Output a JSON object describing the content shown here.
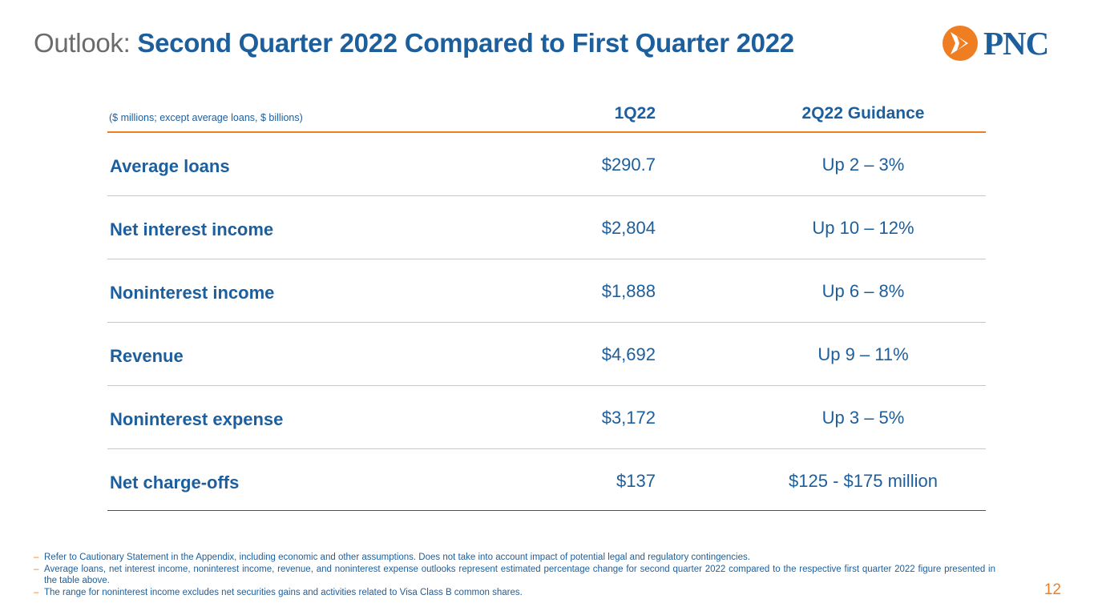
{
  "title": {
    "prefix": "Outlook:",
    "main": "Second Quarter 2022 Compared to First Quarter 2022"
  },
  "logo": {
    "text": "PNC",
    "mark": "®",
    "icon": "pnc-arrow-logo-icon"
  },
  "table": {
    "units_note": "($ millions; except average loans, $ billions)",
    "columns": [
      "1Q22",
      "2Q22 Guidance"
    ],
    "rows": [
      {
        "label": "Average loans",
        "q1": "$290.7",
        "guidance": "Up 2 – 3%"
      },
      {
        "label": "Net interest income",
        "q1": "$2,804",
        "guidance": "Up 10 – 12%"
      },
      {
        "label": "Noninterest income",
        "q1": "$1,888",
        "guidance": "Up 6 – 8%"
      },
      {
        "label": "Revenue",
        "q1": "$4,692",
        "guidance": "Up 9 – 11%"
      },
      {
        "label": "Noninterest expense",
        "q1": "$3,172",
        "guidance": "Up 3 – 5%"
      },
      {
        "label": "Net charge-offs",
        "q1": "$137",
        "guidance": "$125 - $175 million"
      }
    ]
  },
  "footnotes": {
    "bullet": "–",
    "items": [
      "Refer to Cautionary Statement in the Appendix, including economic and other assumptions. Does not take into account impact of potential legal and regulatory contingencies.",
      "Average loans, net interest income, noninterest income, revenue, and noninterest expense outlooks represent estimated percentage change for second quarter 2022 compared to the respective first quarter 2022 figure presented in the table above.",
      "The range for noninterest income excludes net securities gains and activities related to Visa Class B common shares."
    ]
  },
  "page_number": "12",
  "colors": {
    "brand_blue": "#1d5e9c",
    "brand_orange": "#ef7d22",
    "title_gray": "#6b6b6b"
  }
}
